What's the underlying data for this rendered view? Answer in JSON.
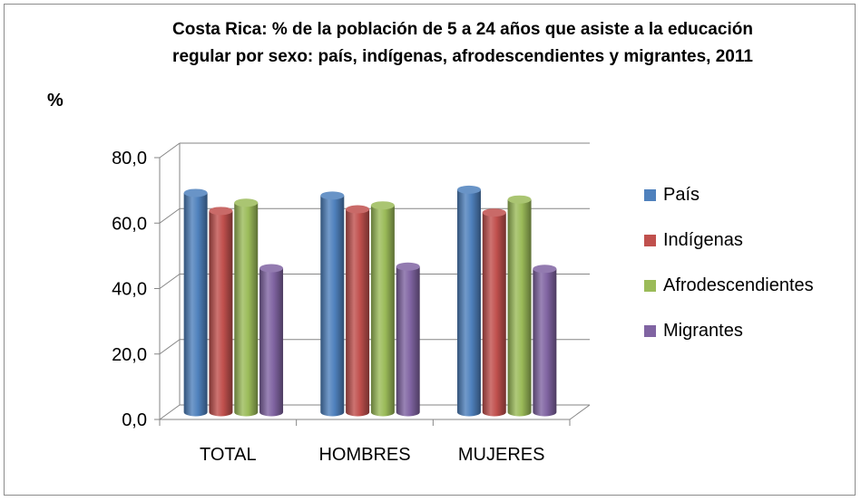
{
  "chart_data": {
    "type": "bar",
    "title": "Costa Rica: % de la población de 5 a 24 años que asiste a la educación regular por sexo: país, indígenas, afrodescendientes y migrantes, 2011",
    "ylabel": "%",
    "xlabel": "",
    "categories": [
      "TOTAL",
      "HOMBRES",
      "MUJERES"
    ],
    "ylim": [
      0,
      80
    ],
    "yticks": [
      "0,0",
      "20,0",
      "40,0",
      "60,0",
      "80,0"
    ],
    "ytick_values": [
      0,
      20,
      40,
      60,
      80
    ],
    "grid": true,
    "legend_position": "right",
    "series": [
      {
        "name": "País",
        "color": "#4F81BD",
        "values": [
          67.0,
          66.2,
          68.0
        ]
      },
      {
        "name": "Indígenas",
        "color": "#C0504D",
        "values": [
          61.5,
          62.0,
          61.0
        ]
      },
      {
        "name": "Afrodescendientes",
        "color": "#9BBB59",
        "values": [
          64.0,
          63.2,
          65.0
        ]
      },
      {
        "name": "Migrantes",
        "color": "#8064A2",
        "values": [
          44.0,
          44.5,
          43.8
        ]
      }
    ]
  }
}
